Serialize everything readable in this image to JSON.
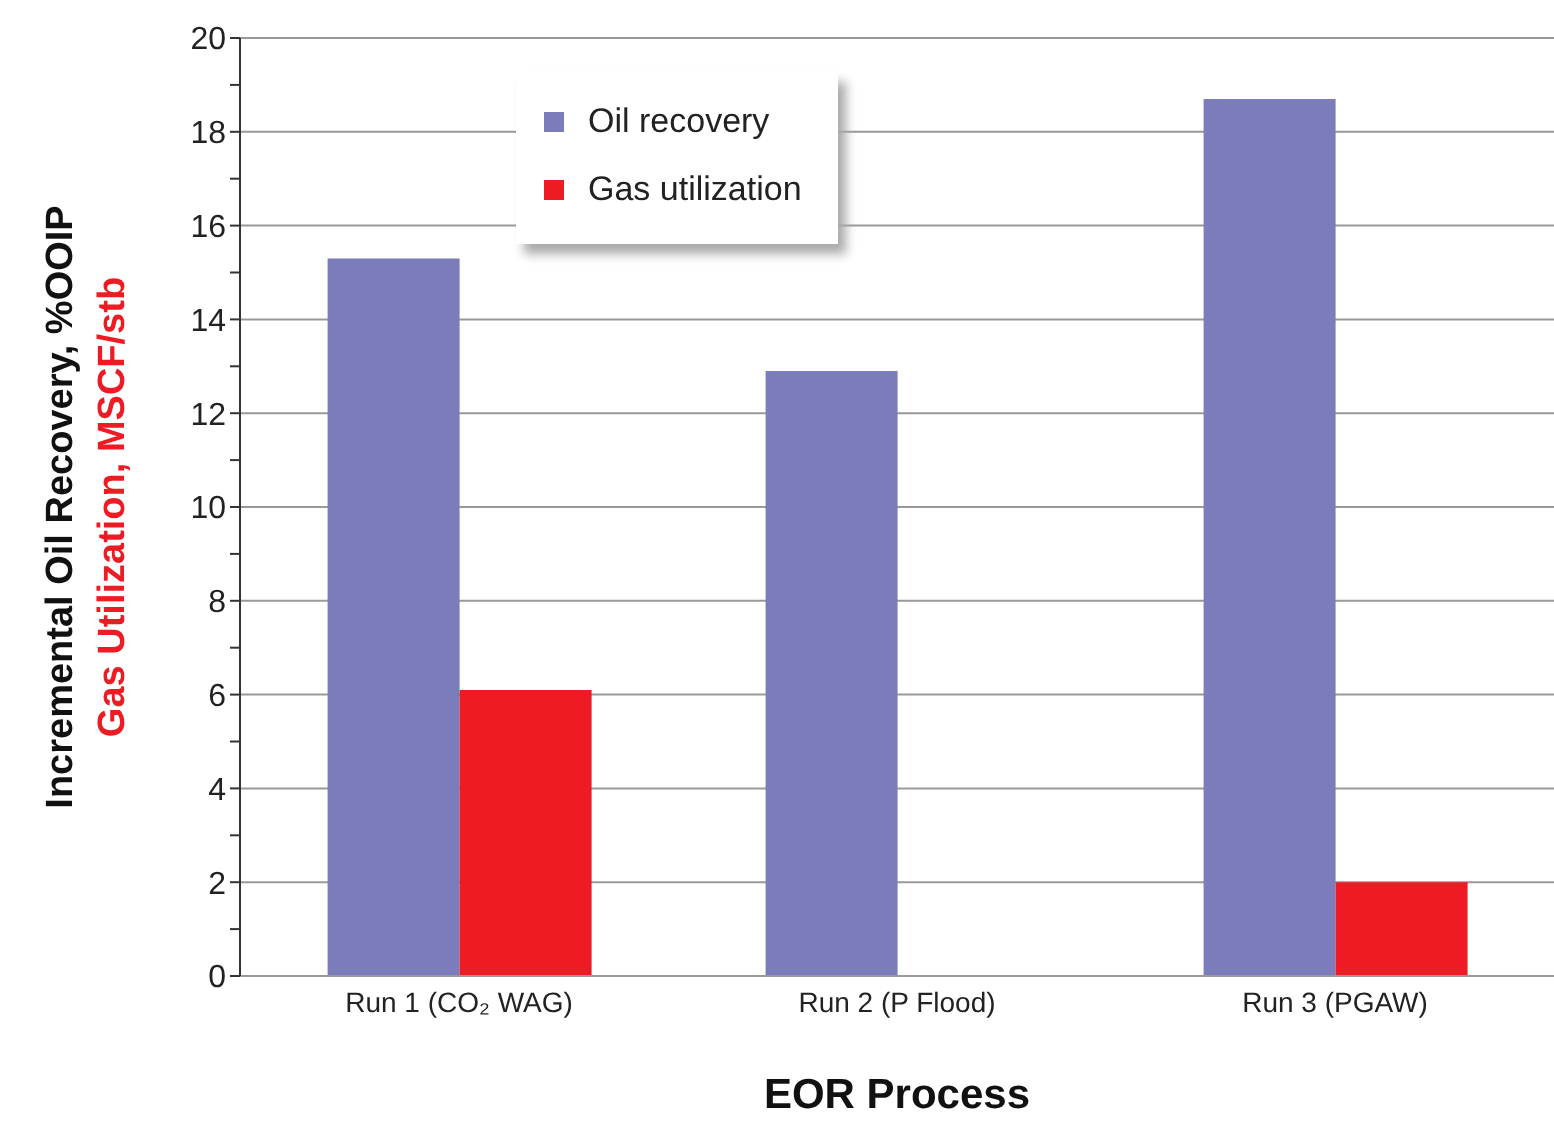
{
  "chart_data": {
    "type": "bar",
    "xlabel": "EOR Process",
    "ylabel": "Incremental Oil Recovery, %OOIP\nGas Utilization, MSCF/stb",
    "categories": [
      "Run 1 (CO₂ WAG)",
      "Run 2 (P Flood)",
      "Run 3 (PGAW)"
    ],
    "series": [
      {
        "name": "Oil recovery",
        "color": "#7a7dba",
        "values": [
          15.3,
          12.9,
          18.7
        ]
      },
      {
        "name": "Gas utilization",
        "color": "#ed1c24",
        "values": [
          6.1,
          null,
          2.0
        ]
      }
    ],
    "ylim": [
      0,
      20
    ],
    "yticks": [
      0,
      {
        "value": 1,
        "label": null
      },
      2,
      {
        "value": 3,
        "label": null
      },
      4,
      {
        "value": 5,
        "label": null
      },
      6,
      {
        "value": 7,
        "label": null
      },
      8,
      {
        "value": 9,
        "label": null
      },
      10,
      {
        "value": 11,
        "label": null
      },
      12,
      {
        "value": 13,
        "label": null
      },
      14,
      {
        "value": 15,
        "label": null
      },
      16,
      {
        "value": 17,
        "label": null
      },
      18,
      {
        "value": 19,
        "label": null
      },
      20
    ],
    "grid": "y",
    "legend": "top"
  }
}
